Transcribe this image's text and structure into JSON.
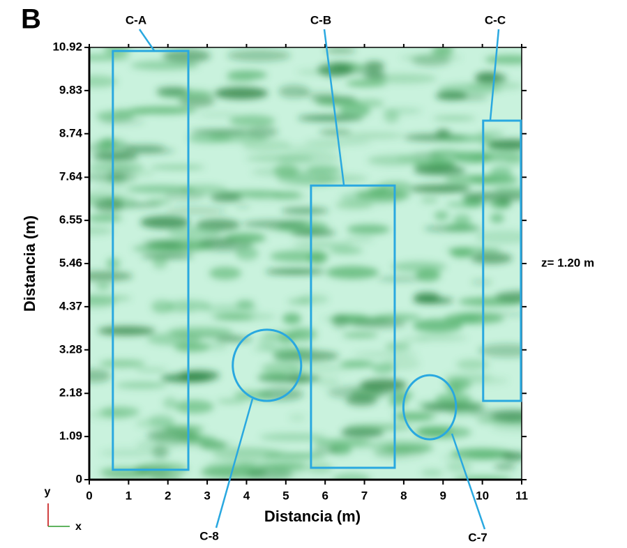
{
  "chart_data": {
    "type": "heatmap",
    "panel_label": "B",
    "x_label": "Distancia (m)",
    "y_label": "Distancia (m)",
    "slice_label": "z= 1.20 m",
    "axis_y_symbol": "y",
    "axis_x_symbol": "x",
    "xlim": [
      0,
      11
    ],
    "ylim": [
      0,
      10.92
    ],
    "xticks": [
      0,
      1,
      2,
      3,
      4,
      5,
      6,
      7,
      8,
      9,
      10,
      11
    ],
    "yticks": [
      0,
      1.09,
      2.18,
      3.28,
      4.37,
      5.46,
      6.55,
      7.64,
      8.74,
      9.83,
      10.92
    ],
    "annotations": [
      {
        "label": "C-A",
        "shape": "rect",
        "x": [
          0.6,
          2.52
        ],
        "y": [
          0.25,
          10.83
        ]
      },
      {
        "label": "C-B",
        "shape": "rect",
        "x": [
          5.64,
          7.77
        ],
        "y": [
          0.3,
          7.43
        ]
      },
      {
        "label": "C-C",
        "shape": "rect",
        "x": [
          10.02,
          10.98
        ],
        "y": [
          1.99,
          9.07
        ]
      },
      {
        "label": "C-8",
        "shape": "ellipse",
        "x": [
          3.65,
          5.39
        ],
        "y": [
          1.99,
          3.79
        ]
      },
      {
        "label": "C-7",
        "shape": "ellipse",
        "x": [
          7.99,
          9.33
        ],
        "y": [
          1.02,
          2.64
        ]
      }
    ],
    "annotation_color": "#29a8e0"
  }
}
